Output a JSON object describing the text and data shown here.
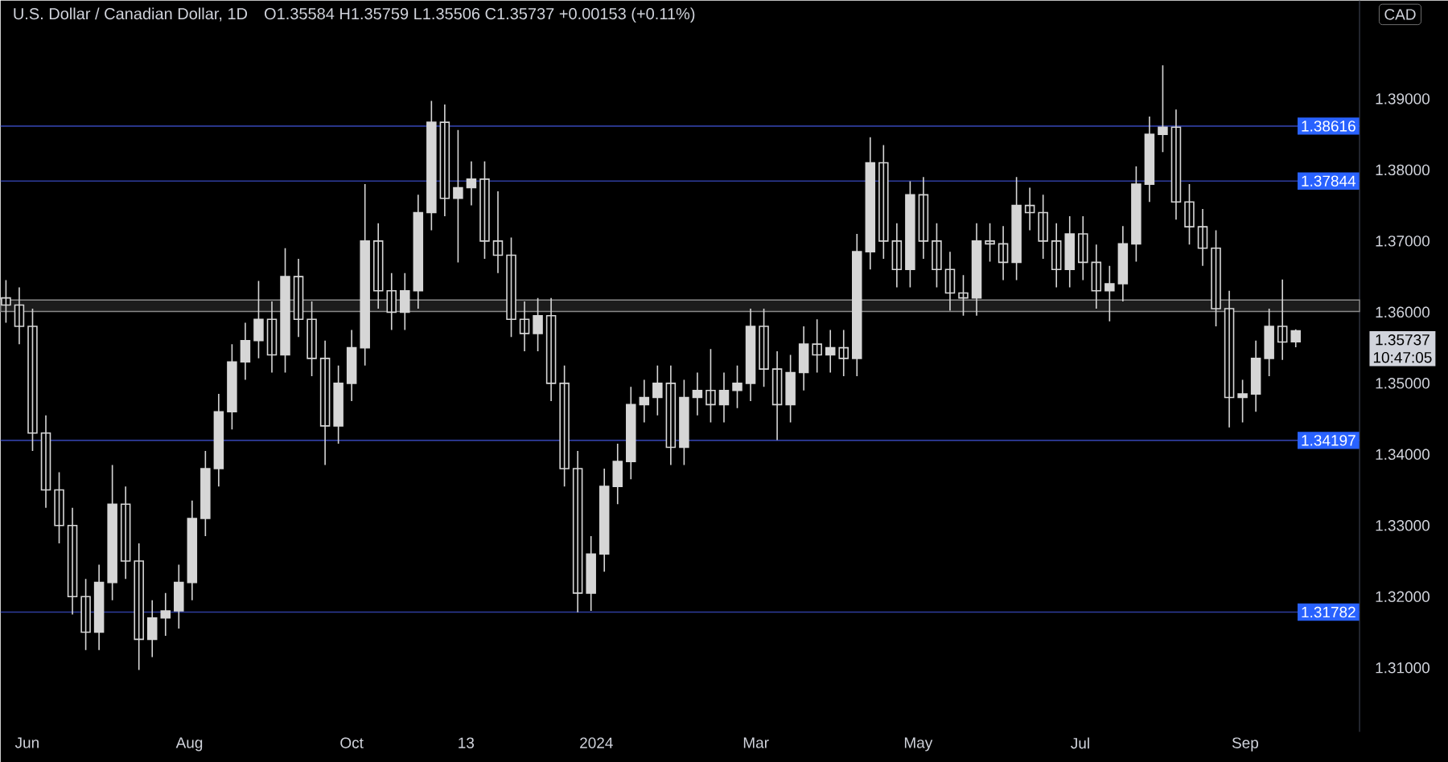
{
  "chart_data": {
    "type": "candlestick",
    "title": "U.S. Dollar / Canadian Dollar, 1D",
    "subtitle": "O1.35584 H1.35759 L1.35506 C1.35737 +0.00153 (+0.11%)",
    "annotations": [
      "CAD",
      "1.35737",
      "10:47:05"
    ],
    "color": "#d6d6d6",
    "x": [
      "2023-05-24",
      "2023-05-29",
      "2023-06-03",
      "2023-06-08",
      "2023-06-13",
      "2023-06-18",
      "2023-06-23",
      "2023-06-28",
      "2023-07-03",
      "2023-07-08",
      "2023-07-13",
      "2023-07-18",
      "2023-07-23",
      "2023-07-28",
      "2023-08-02",
      "2023-08-07",
      "2023-08-12",
      "2023-08-17",
      "2023-08-22",
      "2023-08-27",
      "2023-09-01",
      "2023-09-06",
      "2023-09-11",
      "2023-09-16",
      "2023-09-21",
      "2023-09-26",
      "2023-10-01",
      "2023-10-06",
      "2023-10-11",
      "2023-10-16",
      "2023-10-21",
      "2023-10-26",
      "2023-10-31",
      "2023-11-05",
      "2023-11-10",
      "2023-11-15",
      "2023-11-20",
      "2023-11-25",
      "2023-11-30",
      "2023-12-05",
      "2023-12-10",
      "2023-12-15",
      "2023-12-20",
      "2023-12-25",
      "2023-12-30",
      "2024-01-04",
      "2024-01-09",
      "2024-01-14",
      "2024-01-19",
      "2024-01-24",
      "2024-01-29",
      "2024-02-03",
      "2024-02-08",
      "2024-02-13",
      "2024-02-18",
      "2024-02-23",
      "2024-02-28",
      "2024-03-04",
      "2024-03-09",
      "2024-03-14",
      "2024-03-19",
      "2024-03-24",
      "2024-03-29",
      "2024-04-03",
      "2024-04-08",
      "2024-04-13",
      "2024-04-18",
      "2024-04-23",
      "2024-04-28",
      "2024-05-03",
      "2024-05-08",
      "2024-05-13",
      "2024-05-18",
      "2024-05-23",
      "2024-05-28",
      "2024-06-02",
      "2024-06-07",
      "2024-06-12",
      "2024-06-17",
      "2024-06-22",
      "2024-06-27",
      "2024-07-02",
      "2024-07-07",
      "2024-07-12",
      "2024-07-17",
      "2024-07-22",
      "2024-07-27",
      "2024-08-01",
      "2024-08-06",
      "2024-08-11",
      "2024-08-16",
      "2024-08-21",
      "2024-08-26",
      "2024-08-31",
      "2024-09-05",
      "2024-09-10",
      "2024-09-15",
      "2024-09-20"
    ],
    "ohlc": [
      [
        1.362,
        1.3645,
        1.3585,
        1.361
      ],
      [
        1.361,
        1.3635,
        1.3555,
        1.358
      ],
      [
        1.358,
        1.3605,
        1.3405,
        1.343
      ],
      [
        1.343,
        1.3455,
        1.3325,
        1.335
      ],
      [
        1.335,
        1.3375,
        1.3275,
        1.33
      ],
      [
        1.33,
        1.3325,
        1.3175,
        1.32
      ],
      [
        1.32,
        1.3225,
        1.3125,
        1.315
      ],
      [
        1.315,
        1.3245,
        1.3125,
        1.322
      ],
      [
        1.322,
        1.3385,
        1.3195,
        1.333
      ],
      [
        1.333,
        1.3355,
        1.3225,
        1.325
      ],
      [
        1.325,
        1.3275,
        1.3097,
        1.314
      ],
      [
        1.314,
        1.3195,
        1.3115,
        1.317
      ],
      [
        1.317,
        1.3205,
        1.3145,
        1.318
      ],
      [
        1.318,
        1.3245,
        1.3155,
        1.322
      ],
      [
        1.322,
        1.3335,
        1.3195,
        1.331
      ],
      [
        1.331,
        1.3405,
        1.3285,
        1.338
      ],
      [
        1.338,
        1.3485,
        1.3355,
        1.346
      ],
      [
        1.346,
        1.3555,
        1.3435,
        1.353
      ],
      [
        1.353,
        1.3585,
        1.3505,
        1.356
      ],
      [
        1.356,
        1.3644,
        1.3535,
        1.359
      ],
      [
        1.359,
        1.3615,
        1.3515,
        1.354
      ],
      [
        1.354,
        1.369,
        1.3515,
        1.365
      ],
      [
        1.365,
        1.3675,
        1.3565,
        1.359
      ],
      [
        1.359,
        1.3615,
        1.351,
        1.3535
      ],
      [
        1.3535,
        1.356,
        1.3385,
        1.344
      ],
      [
        1.344,
        1.3525,
        1.3415,
        1.35
      ],
      [
        1.35,
        1.3575,
        1.3475,
        1.355
      ],
      [
        1.355,
        1.378,
        1.3525,
        1.37
      ],
      [
        1.37,
        1.3725,
        1.3605,
        1.363
      ],
      [
        1.363,
        1.3655,
        1.3575,
        1.36
      ],
      [
        1.36,
        1.3655,
        1.3575,
        1.363
      ],
      [
        1.363,
        1.3765,
        1.3605,
        1.374
      ],
      [
        1.374,
        1.3897,
        1.3715,
        1.3867
      ],
      [
        1.3867,
        1.3892,
        1.3735,
        1.376
      ],
      [
        1.376,
        1.3856,
        1.367,
        1.3775
      ],
      [
        1.3775,
        1.3812,
        1.375,
        1.3787
      ],
      [
        1.3787,
        1.3812,
        1.3675,
        1.37
      ],
      [
        1.37,
        1.377,
        1.3655,
        1.368
      ],
      [
        1.368,
        1.3705,
        1.3565,
        1.359
      ],
      [
        1.359,
        1.3615,
        1.3545,
        1.357
      ],
      [
        1.357,
        1.362,
        1.3545,
        1.3595
      ],
      [
        1.3595,
        1.362,
        1.3475,
        1.35
      ],
      [
        1.35,
        1.3525,
        1.3355,
        1.338
      ],
      [
        1.338,
        1.3405,
        1.3178,
        1.3205
      ],
      [
        1.3205,
        1.3285,
        1.318,
        1.326
      ],
      [
        1.326,
        1.338,
        1.3235,
        1.3355
      ],
      [
        1.3355,
        1.3415,
        1.333,
        1.339
      ],
      [
        1.339,
        1.3495,
        1.3365,
        1.347
      ],
      [
        1.347,
        1.3505,
        1.3445,
        1.348
      ],
      [
        1.348,
        1.3525,
        1.3455,
        1.35
      ],
      [
        1.35,
        1.3525,
        1.3385,
        1.341
      ],
      [
        1.341,
        1.3505,
        1.3385,
        1.348
      ],
      [
        1.348,
        1.3515,
        1.3455,
        1.349
      ],
      [
        1.349,
        1.3548,
        1.3445,
        1.347
      ],
      [
        1.347,
        1.3515,
        1.3445,
        1.349
      ],
      [
        1.349,
        1.3525,
        1.3465,
        1.35
      ],
      [
        1.35,
        1.3605,
        1.3475,
        1.358
      ],
      [
        1.358,
        1.3605,
        1.3495,
        1.352
      ],
      [
        1.352,
        1.3545,
        1.342,
        1.347
      ],
      [
        1.347,
        1.354,
        1.3445,
        1.3515
      ],
      [
        1.3515,
        1.358,
        1.349,
        1.3555
      ],
      [
        1.3555,
        1.359,
        1.3515,
        1.354
      ],
      [
        1.354,
        1.3575,
        1.3515,
        1.355
      ],
      [
        1.355,
        1.3575,
        1.351,
        1.3535
      ],
      [
        1.3535,
        1.371,
        1.351,
        1.3685
      ],
      [
        1.3685,
        1.3846,
        1.366,
        1.381
      ],
      [
        1.381,
        1.3835,
        1.3675,
        1.37
      ],
      [
        1.37,
        1.3725,
        1.3635,
        1.366
      ],
      [
        1.366,
        1.3784,
        1.3635,
        1.3765
      ],
      [
        1.3765,
        1.379,
        1.3675,
        1.37
      ],
      [
        1.37,
        1.3725,
        1.3635,
        1.366
      ],
      [
        1.366,
        1.3685,
        1.3602,
        1.3627
      ],
      [
        1.3627,
        1.3652,
        1.3595,
        1.362
      ],
      [
        1.362,
        1.3725,
        1.3595,
        1.37
      ],
      [
        1.37,
        1.3725,
        1.3671,
        1.3696
      ],
      [
        1.3696,
        1.3721,
        1.3645,
        1.367
      ],
      [
        1.367,
        1.379,
        1.3645,
        1.375
      ],
      [
        1.375,
        1.3775,
        1.3715,
        1.374
      ],
      [
        1.374,
        1.3765,
        1.3675,
        1.37
      ],
      [
        1.37,
        1.3725,
        1.3635,
        1.366
      ],
      [
        1.366,
        1.3735,
        1.3635,
        1.371
      ],
      [
        1.371,
        1.3735,
        1.3645,
        1.367
      ],
      [
        1.367,
        1.3695,
        1.3605,
        1.363
      ],
      [
        1.363,
        1.3665,
        1.3587,
        1.364
      ],
      [
        1.364,
        1.3721,
        1.3615,
        1.3696
      ],
      [
        1.3696,
        1.3805,
        1.3671,
        1.378
      ],
      [
        1.378,
        1.3875,
        1.3755,
        1.385
      ],
      [
        1.385,
        1.3947,
        1.3825,
        1.386
      ],
      [
        1.386,
        1.3885,
        1.373,
        1.3755
      ],
      [
        1.3755,
        1.378,
        1.3695,
        1.372
      ],
      [
        1.372,
        1.3745,
        1.3665,
        1.369
      ],
      [
        1.369,
        1.3715,
        1.358,
        1.3605
      ],
      [
        1.3605,
        1.363,
        1.3438,
        1.348
      ],
      [
        1.348,
        1.3505,
        1.3445,
        1.3485
      ],
      [
        1.3485,
        1.356,
        1.346,
        1.3535
      ],
      [
        1.3535,
        1.3605,
        1.351,
        1.358
      ],
      [
        1.358,
        1.3646,
        1.3533,
        1.3558
      ],
      [
        1.35584,
        1.35759,
        1.35506,
        1.35737
      ]
    ],
    "xlim": [
      "2023-05-22",
      "2024-10-14"
    ],
    "ylim": [
      1.301,
      1.4038
    ],
    "xticks": [
      {
        "value": "2023-06-01",
        "label": "Jun"
      },
      {
        "value": "2023-08-01",
        "label": "Aug"
      },
      {
        "value": "2023-10-01",
        "label": "Oct"
      },
      {
        "value": "2023-11-13",
        "label": "13"
      },
      {
        "value": "2024-01-01",
        "label": "2024"
      },
      {
        "value": "2024-03-01",
        "label": "Mar"
      },
      {
        "value": "2024-05-01",
        "label": "May"
      },
      {
        "value": "2024-07-01",
        "label": "Jul"
      },
      {
        "value": "2024-09-01",
        "label": "Sep"
      }
    ],
    "yticks": [
      {
        "value": 1.31,
        "label": "1.31000"
      },
      {
        "value": 1.32,
        "label": "1.32000"
      },
      {
        "value": 1.33,
        "label": "1.33000"
      },
      {
        "value": 1.34,
        "label": "1.34000"
      },
      {
        "value": 1.35,
        "label": "1.35000"
      },
      {
        "value": 1.36,
        "label": "1.36000"
      },
      {
        "value": 1.37,
        "label": "1.37000"
      },
      {
        "value": 1.38,
        "label": "1.38000"
      },
      {
        "value": 1.39,
        "label": "1.39000"
      }
    ],
    "ref_lines": [
      {
        "axis": "y",
        "value": 1.38616,
        "label": "1.38616",
        "color": "#2f3d9e"
      },
      {
        "axis": "y",
        "value": 1.37844,
        "label": "1.37844",
        "color": "#2f3d9e"
      },
      {
        "axis": "y",
        "value": 1.34197,
        "label": "1.34197",
        "color": "#2f3d9e"
      },
      {
        "axis": "y",
        "value": 1.31782,
        "label": "1.31782",
        "color": "#2f3d9e"
      }
    ],
    "bands": [
      {
        "axis": "y",
        "from": 1.3601,
        "to": 1.3617,
        "color": "#1c1c1c"
      }
    ]
  }
}
